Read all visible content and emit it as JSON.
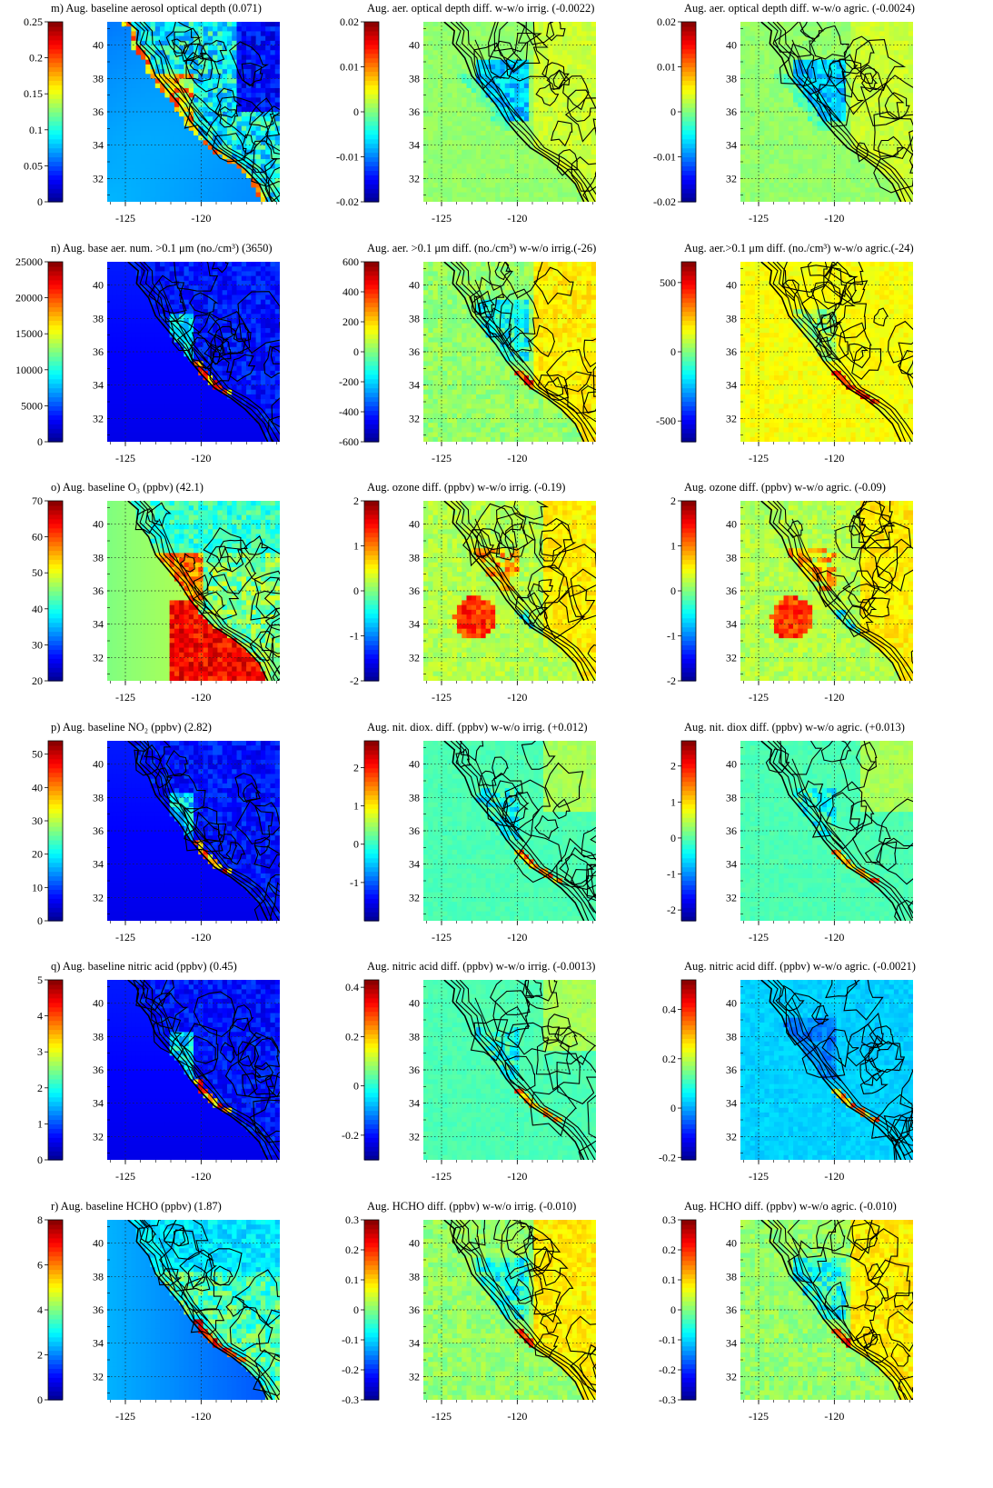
{
  "colors": {
    "jet": [
      "#00008f",
      "#0000ff",
      "#0080ff",
      "#00ffff",
      "#80ff80",
      "#ffff00",
      "#ff8000",
      "#ff0000",
      "#800000"
    ],
    "contour": "#000000",
    "grid": "#222222"
  },
  "chart_data": [
    {
      "id": "m-base",
      "type": "heatmap",
      "title": "m) Aug. baseline aerosol optical depth (0.071)",
      "map_style": "base-aod",
      "colorbar": {
        "min": 0,
        "max": 0.25,
        "ticks": [
          "0",
          "0.05",
          "0.1",
          "0.15",
          "0.2",
          "0.25"
        ]
      },
      "lat_ticks": [
        "32",
        "34",
        "36",
        "38",
        "40"
      ],
      "lon_ticks": [
        "-125",
        "-120"
      ]
    },
    {
      "id": "m-irrig",
      "type": "heatmap",
      "title": "Aug. aer. optical depth diff. w-w/o irrig. (-0.0022)",
      "map_style": "diff-neg",
      "colorbar": {
        "min": -0.02,
        "max": 0.02,
        "ticks": [
          "-0.02",
          "-0.01",
          "0",
          "0.01",
          "0.02"
        ]
      },
      "lat_ticks": [
        "32",
        "34",
        "36",
        "38",
        "40"
      ],
      "lon_ticks": [
        "-125",
        "-120"
      ]
    },
    {
      "id": "m-agric",
      "type": "heatmap",
      "title": "Aug. aer. optical depth diff. w-w/o agric. (-0.0024)",
      "map_style": "diff-neg",
      "colorbar": {
        "min": -0.02,
        "max": 0.02,
        "ticks": [
          "-0.02",
          "-0.01",
          "0",
          "0.01",
          "0.02"
        ]
      },
      "lat_ticks": [
        "32",
        "34",
        "36",
        "38",
        "40"
      ],
      "lon_ticks": [
        "-125",
        "-120"
      ]
    },
    {
      "id": "n-base",
      "type": "heatmap",
      "title": "n) Aug. base aer. num. >0.1 μm (no./cm³) (3650)",
      "map_style": "base-dark",
      "colorbar": {
        "min": 0,
        "max": 25000,
        "ticks": [
          "0",
          "5000",
          "10000",
          "15000",
          "20000",
          "25000"
        ]
      },
      "lat_ticks": [
        "32",
        "34",
        "36",
        "38",
        "40"
      ],
      "lon_ticks": [
        "-125",
        "-120"
      ]
    },
    {
      "id": "n-irrig",
      "type": "heatmap",
      "title": "Aug. aer. >0.1 μm diff. (no./cm³) w-w/o irrig.(-26)",
      "map_style": "diff-mix",
      "colorbar": {
        "min": -600,
        "max": 600,
        "ticks": [
          "-600",
          "-400",
          "-200",
          "0",
          "200",
          "400",
          "600"
        ]
      },
      "lat_ticks": [
        "32",
        "34",
        "36",
        "38",
        "40"
      ],
      "lon_ticks": [
        "-125",
        "-120"
      ]
    },
    {
      "id": "n-agric",
      "type": "heatmap",
      "title": "Aug. aer.>0.1 μm diff. (no./cm³) w-w/o agric.(-24)",
      "map_style": "diff-yellow",
      "colorbar": {
        "min": -650,
        "max": 650,
        "ticks": [
          "-500",
          "0",
          "500"
        ]
      },
      "lat_ticks": [
        "32",
        "34",
        "36",
        "38",
        "40"
      ],
      "lon_ticks": [
        "-125",
        "-120"
      ]
    },
    {
      "id": "o-base",
      "type": "heatmap",
      "title": "o) Aug. baseline O₃ (ppbv) (42.1)",
      "map_style": "base-ozone",
      "colorbar": {
        "min": 20,
        "max": 70,
        "ticks": [
          "20",
          "30",
          "40",
          "50",
          "60",
          "70"
        ]
      },
      "lat_ticks": [
        "32",
        "34",
        "36",
        "38",
        "40"
      ],
      "lon_ticks": [
        "-125",
        "-120"
      ]
    },
    {
      "id": "o-irrig",
      "type": "heatmap",
      "title": "Aug. ozone diff. (ppbv) w-w/o irrig. (-0.19)",
      "map_style": "diff-ozone",
      "colorbar": {
        "min": -2,
        "max": 2,
        "ticks": [
          "-2",
          "-1",
          "0",
          "1",
          "2"
        ]
      },
      "lat_ticks": [
        "32",
        "34",
        "36",
        "38",
        "40"
      ],
      "lon_ticks": [
        "-125",
        "-120"
      ]
    },
    {
      "id": "o-agric",
      "type": "heatmap",
      "title": "Aug. ozone diff. (ppbv) w-w/o agric. (-0.09)",
      "map_style": "diff-ozone",
      "colorbar": {
        "min": -2,
        "max": 2,
        "ticks": [
          "-2",
          "-1",
          "0",
          "1",
          "2"
        ]
      },
      "lat_ticks": [
        "32",
        "34",
        "36",
        "38",
        "40"
      ],
      "lon_ticks": [
        "-125",
        "-120"
      ]
    },
    {
      "id": "p-base",
      "type": "heatmap",
      "title": "p) Aug. baseline NO₂ (ppbv) (2.82)",
      "map_style": "base-dark",
      "colorbar": {
        "min": 0,
        "max": 54,
        "ticks": [
          "0",
          "10",
          "20",
          "30",
          "40",
          "50"
        ]
      },
      "lat_ticks": [
        "32",
        "34",
        "36",
        "38",
        "40"
      ],
      "lon_ticks": [
        "-125",
        "-120"
      ]
    },
    {
      "id": "p-irrig",
      "type": "heatmap",
      "title": "Aug. nit. diox. diff. (ppbv) w-w/o irrig. (+0.012)",
      "map_style": "diff-cyan",
      "colorbar": {
        "min": -2,
        "max": 2.7,
        "ticks": [
          "-1",
          "0",
          "1",
          "2"
        ]
      },
      "lat_ticks": [
        "32",
        "34",
        "36",
        "38",
        "40"
      ],
      "lon_ticks": [
        "-125",
        "-120"
      ]
    },
    {
      "id": "p-agric",
      "type": "heatmap",
      "title": "Aug. nit. diox diff. (ppbv) w-w/o agric. (+0.013)",
      "map_style": "diff-cyan",
      "colorbar": {
        "min": -2.3,
        "max": 2.7,
        "ticks": [
          "-2",
          "-1",
          "0",
          "1",
          "2"
        ]
      },
      "lat_ticks": [
        "32",
        "34",
        "36",
        "38",
        "40"
      ],
      "lon_ticks": [
        "-125",
        "-120"
      ]
    },
    {
      "id": "q-base",
      "type": "heatmap",
      "title": "q) Aug. baseline nitric acid (ppbv) (0.45)",
      "map_style": "base-dark",
      "colorbar": {
        "min": 0,
        "max": 5,
        "ticks": [
          "0",
          "1",
          "2",
          "3",
          "4",
          "5"
        ]
      },
      "lat_ticks": [
        "32",
        "34",
        "36",
        "38",
        "40"
      ],
      "lon_ticks": [
        "-125",
        "-120"
      ]
    },
    {
      "id": "q-irrig",
      "type": "heatmap",
      "title": "Aug. nitric acid diff. (ppbv) w-w/o irrig. (-0.0013)",
      "map_style": "diff-cyan",
      "colorbar": {
        "min": -0.3,
        "max": 0.43,
        "ticks": [
          "-0.2",
          "0",
          "0.2",
          "0.4"
        ]
      },
      "lat_ticks": [
        "32",
        "34",
        "36",
        "38",
        "40"
      ],
      "lon_ticks": [
        "-125",
        "-120"
      ]
    },
    {
      "id": "q-agric",
      "type": "heatmap",
      "title": "Aug. nitric acid diff. (ppbv) w-w/o agric. (-0.0021)",
      "map_style": "diff-blue",
      "colorbar": {
        "min": -0.21,
        "max": 0.52,
        "ticks": [
          "-0.2",
          "0",
          "0.2",
          "0.4"
        ]
      },
      "lat_ticks": [
        "32",
        "34",
        "36",
        "38",
        "40"
      ],
      "lon_ticks": [
        "-125",
        "-120"
      ]
    },
    {
      "id": "r-base",
      "type": "heatmap",
      "title": "r) Aug. baseline HCHO (ppbv) (1.87)",
      "map_style": "base-hcho",
      "colorbar": {
        "min": 0,
        "max": 8,
        "ticks": [
          "0",
          "2",
          "4",
          "6",
          "8"
        ]
      },
      "lat_ticks": [
        "32",
        "34",
        "36",
        "38",
        "40"
      ],
      "lon_ticks": [
        "-125",
        "-120"
      ]
    },
    {
      "id": "r-irrig",
      "type": "heatmap",
      "title": "Aug. HCHO diff. (ppbv) w-w/o irrig. (-0.010)",
      "map_style": "diff-mix",
      "colorbar": {
        "min": -0.3,
        "max": 0.3,
        "ticks": [
          "-0.3",
          "-0.2",
          "-0.1",
          "0",
          "0.1",
          "0.2",
          "0.3"
        ]
      },
      "lat_ticks": [
        "32",
        "34",
        "36",
        "38",
        "40"
      ],
      "lon_ticks": [
        "-125",
        "-120"
      ]
    },
    {
      "id": "r-agric",
      "type": "heatmap",
      "title": "Aug. HCHO diff. (ppbv) w-w/o agric. (-0.010)",
      "map_style": "diff-mix",
      "colorbar": {
        "min": -0.3,
        "max": 0.3,
        "ticks": [
          "-0.3",
          "-0.2",
          "-0.1",
          "0",
          "0.1",
          "0.2",
          "0.3"
        ]
      },
      "lat_ticks": [
        "32",
        "34",
        "36",
        "38",
        "40"
      ],
      "lon_ticks": [
        "-125",
        "-120"
      ]
    }
  ]
}
